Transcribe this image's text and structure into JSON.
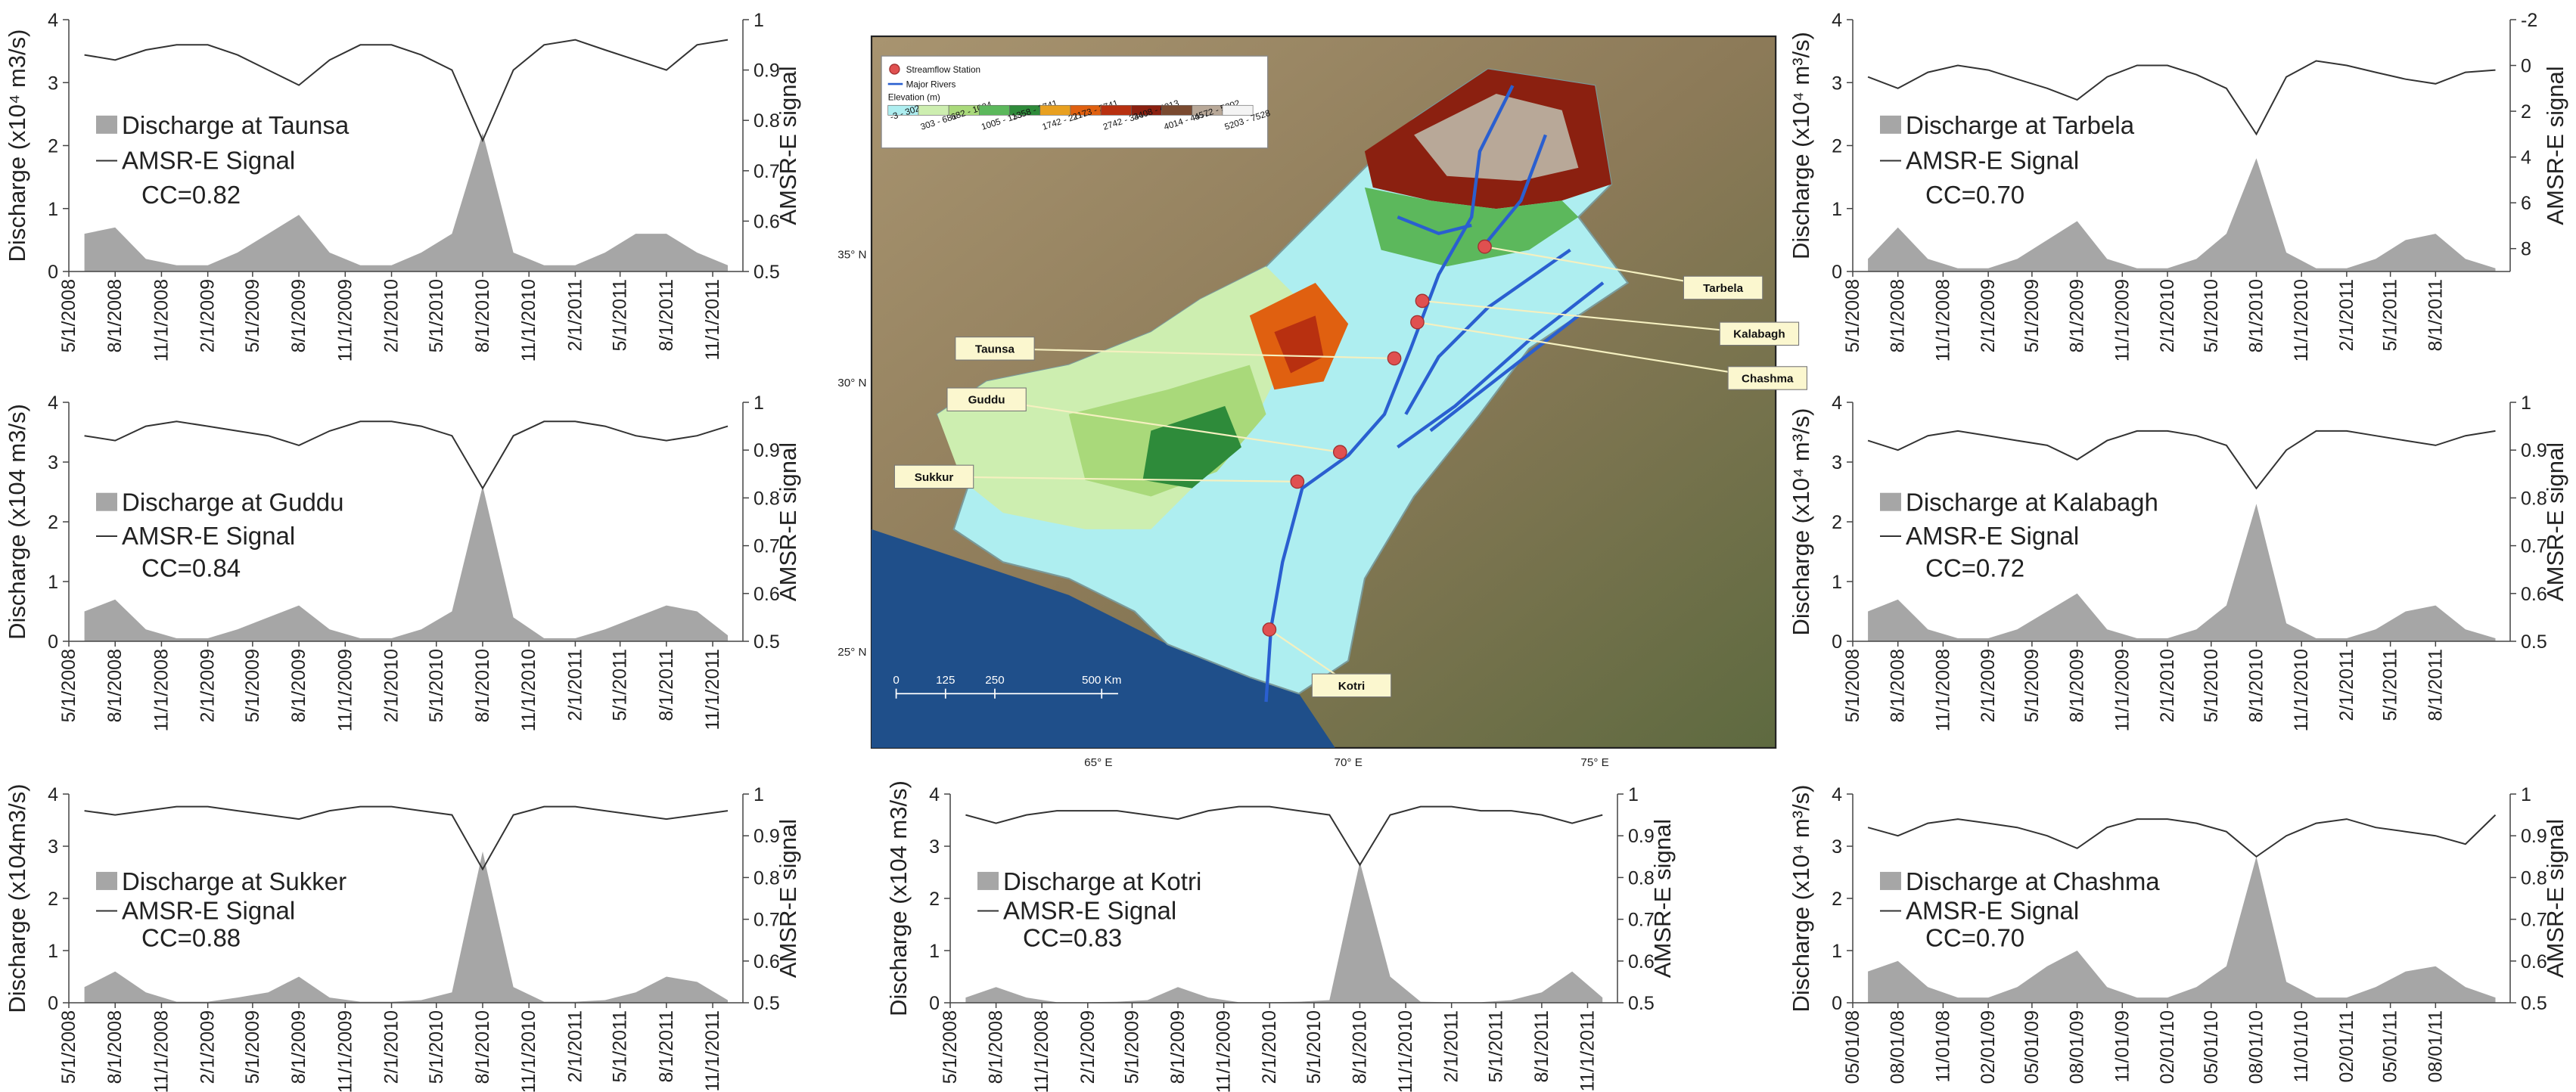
{
  "chart_data": [
    {
      "type": "combo",
      "y_label": "Discharge (x10⁴ m3/s)",
      "y2_label": "AMSR-E signal",
      "annotation": "CC=0.82",
      "x": [
        "6/1/2008",
        "8/1/2008",
        "10/1/2008",
        "12/1/2008",
        "2/1/2009",
        "4/1/2009",
        "6/1/2009",
        "8/1/2009",
        "10/1/2009",
        "12/1/2009",
        "2/1/2010",
        "4/1/2010",
        "6/1/2010",
        "8/1/2010",
        "10/1/2010",
        "12/1/2010",
        "2/1/2011",
        "4/1/2011",
        "6/1/2011",
        "8/1/2011",
        "10/1/2011",
        "12/1/2011"
      ],
      "xlim": [
        "5/1/2008",
        "12/31/2011"
      ],
      "xticks": [
        "5/1/2008",
        "8/1/2008",
        "11/1/2008",
        "2/1/2009",
        "5/1/2009",
        "8/1/2009",
        "11/1/2009",
        "2/1/2010",
        "5/1/2010",
        "8/1/2010",
        "11/1/2010",
        "2/1/2011",
        "5/1/2011",
        "8/1/2011",
        "11/1/2011"
      ],
      "ylim": [
        0,
        4
      ],
      "yticks": [
        0,
        1,
        2,
        3,
        4
      ],
      "y2lim": [
        0.5,
        1
      ],
      "y2ticks": [
        0.5,
        0.6,
        0.7,
        0.8,
        0.9,
        1
      ],
      "series": [
        {
          "name": "Discharge at Taunsa",
          "mark": "area",
          "color": "#a6a6a6",
          "values": [
            0.6,
            0.7,
            0.2,
            0.1,
            0.1,
            0.3,
            0.6,
            0.9,
            0.3,
            0.1,
            0.1,
            0.3,
            0.6,
            2.2,
            0.3,
            0.1,
            0.1,
            0.3,
            0.6,
            0.6,
            0.3,
            0.1
          ]
        },
        {
          "name": "AMSR-E Signal",
          "mark": "line",
          "axis": "y2",
          "color": "#333333",
          "values": [
            0.93,
            0.92,
            0.94,
            0.95,
            0.95,
            0.93,
            0.9,
            0.87,
            0.92,
            0.95,
            0.95,
            0.93,
            0.9,
            0.76,
            0.9,
            0.95,
            0.96,
            0.94,
            0.92,
            0.9,
            0.95,
            0.96
          ]
        }
      ]
    },
    {
      "type": "combo",
      "y_label": "Discharge (x104 m3/s)",
      "y2_label": "AMSR-E signal",
      "annotation": "CC=0.84",
      "x": [
        "6/1/2008",
        "8/1/2008",
        "10/1/2008",
        "12/1/2008",
        "2/1/2009",
        "4/1/2009",
        "6/1/2009",
        "8/1/2009",
        "10/1/2009",
        "12/1/2009",
        "2/1/2010",
        "4/1/2010",
        "6/1/2010",
        "8/1/2010",
        "10/1/2010",
        "12/1/2010",
        "2/1/2011",
        "4/1/2011",
        "6/1/2011",
        "8/1/2011",
        "10/1/2011",
        "12/1/2011"
      ],
      "xlim": [
        "5/1/2008",
        "12/31/2011"
      ],
      "xticks": [
        "5/1/2008",
        "8/1/2008",
        "11/1/2008",
        "2/1/2009",
        "5/1/2009",
        "8/1/2009",
        "11/1/2009",
        "2/1/2010",
        "5/1/2010",
        "8/1/2010",
        "11/1/2010",
        "2/1/2011",
        "5/1/2011",
        "8/1/2011",
        "11/1/2011"
      ],
      "ylim": [
        0,
        4
      ],
      "yticks": [
        0,
        1,
        2,
        3,
        4
      ],
      "y2lim": [
        0.5,
        1
      ],
      "y2ticks": [
        0.5,
        0.6,
        0.7,
        0.8,
        0.9,
        1
      ],
      "series": [
        {
          "name": "Discharge at Guddu",
          "mark": "area",
          "color": "#a6a6a6",
          "values": [
            0.5,
            0.7,
            0.2,
            0.05,
            0.05,
            0.2,
            0.4,
            0.6,
            0.2,
            0.05,
            0.05,
            0.2,
            0.5,
            2.6,
            0.4,
            0.05,
            0.05,
            0.2,
            0.4,
            0.6,
            0.5,
            0.1
          ]
        },
        {
          "name": "AMSR-E Signal",
          "mark": "line",
          "axis": "y2",
          "color": "#333333",
          "values": [
            0.93,
            0.92,
            0.95,
            0.96,
            0.95,
            0.94,
            0.93,
            0.91,
            0.94,
            0.96,
            0.96,
            0.95,
            0.93,
            0.82,
            0.93,
            0.96,
            0.96,
            0.95,
            0.93,
            0.92,
            0.93,
            0.95
          ]
        }
      ]
    },
    {
      "type": "combo",
      "y_label": "Discharge (x104m3/s)",
      "y2_label": "AMSR-E signal",
      "annotation": "CC=0.88",
      "x": [
        "6/1/2008",
        "8/1/2008",
        "10/1/2008",
        "12/1/2008",
        "2/1/2009",
        "4/1/2009",
        "6/1/2009",
        "8/1/2009",
        "10/1/2009",
        "12/1/2009",
        "2/1/2010",
        "4/1/2010",
        "6/1/2010",
        "8/1/2010",
        "10/1/2010",
        "12/1/2010",
        "2/1/2011",
        "4/1/2011",
        "6/1/2011",
        "8/1/2011",
        "10/1/2011",
        "12/1/2011"
      ],
      "xlim": [
        "5/1/2008",
        "12/31/2011"
      ],
      "xticks": [
        "5/1/2008",
        "8/1/2008",
        "11/1/2008",
        "2/1/2009",
        "5/1/2009",
        "8/1/2009",
        "11/1/2009",
        "2/1/2010",
        "5/1/2010",
        "8/1/2010",
        "11/1/2010",
        "2/1/2011",
        "5/1/2011",
        "8/1/2011",
        "11/1/2011"
      ],
      "ylim": [
        0,
        4
      ],
      "yticks": [
        0,
        1,
        2,
        3,
        4
      ],
      "y2lim": [
        0.5,
        1
      ],
      "y2ticks": [
        0.5,
        0.6,
        0.7,
        0.8,
        0.9,
        1
      ],
      "series": [
        {
          "name": "Discharge at Sukker",
          "mark": "area",
          "color": "#a6a6a6",
          "values": [
            0.3,
            0.6,
            0.2,
            0.02,
            0.02,
            0.1,
            0.2,
            0.5,
            0.1,
            0.02,
            0.02,
            0.05,
            0.2,
            2.9,
            0.3,
            0.02,
            0.02,
            0.05,
            0.2,
            0.5,
            0.4,
            0.05
          ]
        },
        {
          "name": "AMSR-E Signal",
          "mark": "line",
          "axis": "y2",
          "color": "#333333",
          "values": [
            0.96,
            0.95,
            0.96,
            0.97,
            0.97,
            0.96,
            0.95,
            0.94,
            0.96,
            0.97,
            0.97,
            0.96,
            0.95,
            0.82,
            0.95,
            0.97,
            0.97,
            0.96,
            0.95,
            0.94,
            0.95,
            0.96
          ]
        }
      ]
    },
    {
      "type": "combo",
      "y_label": "Discharge (x104 m3/s)",
      "y2_label": "AMSR-E signal",
      "annotation": "CC=0.83",
      "x": [
        "6/1/2008",
        "8/1/2008",
        "10/1/2008",
        "12/1/2008",
        "2/1/2009",
        "4/1/2009",
        "6/1/2009",
        "8/1/2009",
        "10/1/2009",
        "12/1/2009",
        "2/1/2010",
        "4/1/2010",
        "6/1/2010",
        "8/1/2010",
        "10/1/2010",
        "12/1/2010",
        "2/1/2011",
        "4/1/2011",
        "6/1/2011",
        "8/1/2011",
        "10/1/2011",
        "12/1/2011"
      ],
      "xlim": [
        "5/1/2008",
        "12/31/2011"
      ],
      "xticks": [
        "5/1/2008",
        "8/1/2008",
        "11/1/2008",
        "2/1/2009",
        "5/1/2009",
        "8/1/2009",
        "11/1/2009",
        "2/1/2010",
        "5/1/2010",
        "8/1/2010",
        "11/1/2010",
        "2/1/2011",
        "5/1/2011",
        "8/1/2011",
        "11/1/2011"
      ],
      "ylim": [
        0,
        4
      ],
      "yticks": [
        0,
        1,
        2,
        3,
        4
      ],
      "y2lim": [
        0.5,
        1
      ],
      "y2ticks": [
        0.5,
        0.6,
        0.7,
        0.8,
        0.9,
        1
      ],
      "series": [
        {
          "name": "Discharge at Kotri",
          "mark": "area",
          "color": "#a6a6a6",
          "values": [
            0.1,
            0.3,
            0.1,
            0.01,
            0.01,
            0.02,
            0.05,
            0.3,
            0.1,
            0.01,
            0.01,
            0.02,
            0.05,
            2.7,
            0.5,
            0.02,
            0.01,
            0.01,
            0.05,
            0.2,
            0.6,
            0.1
          ]
        },
        {
          "name": "AMSR-E Signal",
          "mark": "line",
          "axis": "y2",
          "color": "#333333",
          "values": [
            0.95,
            0.93,
            0.95,
            0.96,
            0.96,
            0.96,
            0.95,
            0.94,
            0.96,
            0.97,
            0.97,
            0.96,
            0.95,
            0.83,
            0.95,
            0.97,
            0.97,
            0.96,
            0.96,
            0.95,
            0.93,
            0.95
          ]
        }
      ]
    },
    {
      "type": "combo",
      "y_label": "Discharge (x10⁴ m³/s)",
      "y2_label": "AMSR-E signal",
      "annotation": "CC=0.70",
      "x": [
        "6/1/2008",
        "8/1/2008",
        "10/1/2008",
        "12/1/2008",
        "2/1/2009",
        "4/1/2009",
        "6/1/2009",
        "8/1/2009",
        "10/1/2009",
        "12/1/2009",
        "2/1/2010",
        "4/1/2010",
        "6/1/2010",
        "8/1/2010",
        "10/1/2010",
        "12/1/2010",
        "2/1/2011",
        "4/1/2011",
        "6/1/2011",
        "8/1/2011",
        "10/1/2011",
        "12/1/2011"
      ],
      "xlim": [
        "5/1/2008",
        "12/31/2011"
      ],
      "xticks": [
        "5/1/2008",
        "8/1/2008",
        "11/1/2008",
        "2/1/2009",
        "5/1/2009",
        "8/1/2009",
        "11/1/2009",
        "2/1/2010",
        "5/1/2010",
        "8/1/2010",
        "11/1/2010",
        "2/1/2011",
        "5/1/2011",
        "8/1/2011"
      ],
      "ylim": [
        0,
        4
      ],
      "yticks": [
        0,
        1,
        2,
        3,
        4
      ],
      "y2lim": [
        9,
        -2
      ],
      "y2ticks": [
        -2,
        0,
        2,
        4,
        6,
        8
      ],
      "series": [
        {
          "name": "Discharge at Tarbela",
          "mark": "area",
          "color": "#a6a6a6",
          "values": [
            0.2,
            0.7,
            0.2,
            0.05,
            0.05,
            0.2,
            0.5,
            0.8,
            0.2,
            0.05,
            0.05,
            0.2,
            0.6,
            1.8,
            0.3,
            0.05,
            0.05,
            0.2,
            0.5,
            0.6,
            0.2,
            0.05
          ]
        },
        {
          "name": "AMSR-E Signal",
          "mark": "line",
          "axis": "y2",
          "color": "#333333",
          "values": [
            0.5,
            1.0,
            0.3,
            0.0,
            0.2,
            0.6,
            1.0,
            1.5,
            0.5,
            0.0,
            0.0,
            0.4,
            1.0,
            3.0,
            0.5,
            -0.2,
            0.0,
            0.3,
            0.6,
            0.8,
            0.3,
            0.2
          ]
        }
      ]
    },
    {
      "type": "combo",
      "y_label": "Discharge (x10⁴ m³/s)",
      "y2_label": "AMSR-E signal",
      "annotation": "CC=0.72",
      "x": [
        "6/1/2008",
        "8/1/2008",
        "10/1/2008",
        "12/1/2008",
        "2/1/2009",
        "4/1/2009",
        "6/1/2009",
        "8/1/2009",
        "10/1/2009",
        "12/1/2009",
        "2/1/2010",
        "4/1/2010",
        "6/1/2010",
        "8/1/2010",
        "10/1/2010",
        "12/1/2010",
        "2/1/2011",
        "4/1/2011",
        "6/1/2011",
        "8/1/2011",
        "10/1/2011",
        "12/1/2011"
      ],
      "xlim": [
        "5/1/2008",
        "12/31/2011"
      ],
      "xticks": [
        "5/1/2008",
        "8/1/2008",
        "11/1/2008",
        "2/1/2009",
        "5/1/2009",
        "8/1/2009",
        "11/1/2009",
        "2/1/2010",
        "5/1/2010",
        "8/1/2010",
        "11/1/2010",
        "2/1/2011",
        "5/1/2011",
        "8/1/2011"
      ],
      "ylim": [
        0,
        4
      ],
      "yticks": [
        0,
        1,
        2,
        3,
        4
      ],
      "y2lim": [
        0.5,
        1
      ],
      "y2ticks": [
        0.5,
        0.6,
        0.7,
        0.8,
        0.9,
        1
      ],
      "series": [
        {
          "name": "Discharge at Kalabagh",
          "mark": "area",
          "color": "#a6a6a6",
          "values": [
            0.5,
            0.7,
            0.2,
            0.05,
            0.05,
            0.2,
            0.5,
            0.8,
            0.2,
            0.05,
            0.05,
            0.2,
            0.6,
            2.3,
            0.3,
            0.05,
            0.05,
            0.2,
            0.5,
            0.6,
            0.2,
            0.05
          ]
        },
        {
          "name": "AMSR-E Signal",
          "mark": "line",
          "axis": "y2",
          "color": "#333333",
          "values": [
            0.92,
            0.9,
            0.93,
            0.94,
            0.93,
            0.92,
            0.91,
            0.88,
            0.92,
            0.94,
            0.94,
            0.93,
            0.91,
            0.82,
            0.9,
            0.94,
            0.94,
            0.93,
            0.92,
            0.91,
            0.93,
            0.94
          ]
        }
      ]
    },
    {
      "type": "combo",
      "y_label": "Discharge (x10⁴ m³/s)",
      "y2_label": "AMSR-E signal",
      "annotation": "CC=0.70",
      "x": [
        "6/1/2008",
        "8/1/2008",
        "10/1/2008",
        "12/1/2008",
        "2/1/2009",
        "4/1/2009",
        "6/1/2009",
        "8/1/2009",
        "10/1/2009",
        "12/1/2009",
        "2/1/2010",
        "4/1/2010",
        "6/1/2010",
        "8/1/2010",
        "10/1/2010",
        "12/1/2010",
        "2/1/2011",
        "4/1/2011",
        "6/1/2011",
        "8/1/2011",
        "10/1/2011",
        "12/1/2011"
      ],
      "xlim": [
        "5/1/2008",
        "12/31/2011"
      ],
      "xticks": [
        "05/01/08",
        "08/01/08",
        "11/01/08",
        "02/01/09",
        "05/01/09",
        "08/01/09",
        "11/01/09",
        "02/01/10",
        "05/01/10",
        "08/01/10",
        "11/01/10",
        "02/01/11",
        "05/01/11",
        "08/01/11"
      ],
      "ylim": [
        0,
        4
      ],
      "yticks": [
        0,
        1,
        2,
        3,
        4
      ],
      "y2lim": [
        0.5,
        1
      ],
      "y2ticks": [
        0.5,
        0.6,
        0.7,
        0.8,
        0.9,
        1
      ],
      "series": [
        {
          "name": "Discharge at Chashma",
          "mark": "area",
          "color": "#a6a6a6",
          "values": [
            0.6,
            0.8,
            0.3,
            0.1,
            0.1,
            0.3,
            0.7,
            1.0,
            0.3,
            0.1,
            0.1,
            0.3,
            0.7,
            2.8,
            0.4,
            0.1,
            0.1,
            0.3,
            0.6,
            0.7,
            0.3,
            0.1
          ]
        },
        {
          "name": "AMSR-E Signal",
          "mark": "line",
          "axis": "y2",
          "color": "#333333",
          "values": [
            0.92,
            0.9,
            0.93,
            0.94,
            0.93,
            0.92,
            0.9,
            0.87,
            0.92,
            0.94,
            0.94,
            0.93,
            0.91,
            0.85,
            0.9,
            0.93,
            0.94,
            0.92,
            0.91,
            0.9,
            0.88,
            0.95
          ]
        }
      ]
    }
  ],
  "map": {
    "legend": [
      {
        "label": "Streamflow Station",
        "color": "#e05050"
      },
      {
        "label": "Major Rivers",
        "color": "#2a5fd0"
      }
    ],
    "elevation_title": "Elevation (m)",
    "elevation_classes": [
      {
        "label": "-3 - 302",
        "color": "#aeeef0"
      },
      {
        "label": "303 - 681",
        "color": "#cdeeb0"
      },
      {
        "label": "682 - 1004",
        "color": "#a9d97a"
      },
      {
        "label": "1005 - 1357",
        "color": "#5cb85c"
      },
      {
        "label": "1358 - 1741",
        "color": "#2e8b3a"
      },
      {
        "label": "1742 - 2172",
        "color": "#e8a020"
      },
      {
        "label": "2173 - 2741",
        "color": "#e06010"
      },
      {
        "label": "2742 - 3407",
        "color": "#b83010"
      },
      {
        "label": "3408 - 4013",
        "color": "#8b2010"
      },
      {
        "label": "4014 - 4571",
        "color": "#7a4a30"
      },
      {
        "label": "4572 - 5202",
        "color": "#b8a898"
      },
      {
        "label": "5203 - 7528",
        "color": "#f4f4f4"
      }
    ],
    "stations": [
      "Tarbela",
      "Kalabagh",
      "Chashma",
      "Taunsa",
      "Guddu",
      "Sukkur",
      "Kotri"
    ],
    "lat_labels": [
      "35° N",
      "30° N",
      "25° N"
    ],
    "lon_labels": [
      "65° E",
      "70° E",
      "75° E"
    ],
    "scale_labels": [
      "0",
      "125",
      "250",
      "500 Km"
    ]
  }
}
